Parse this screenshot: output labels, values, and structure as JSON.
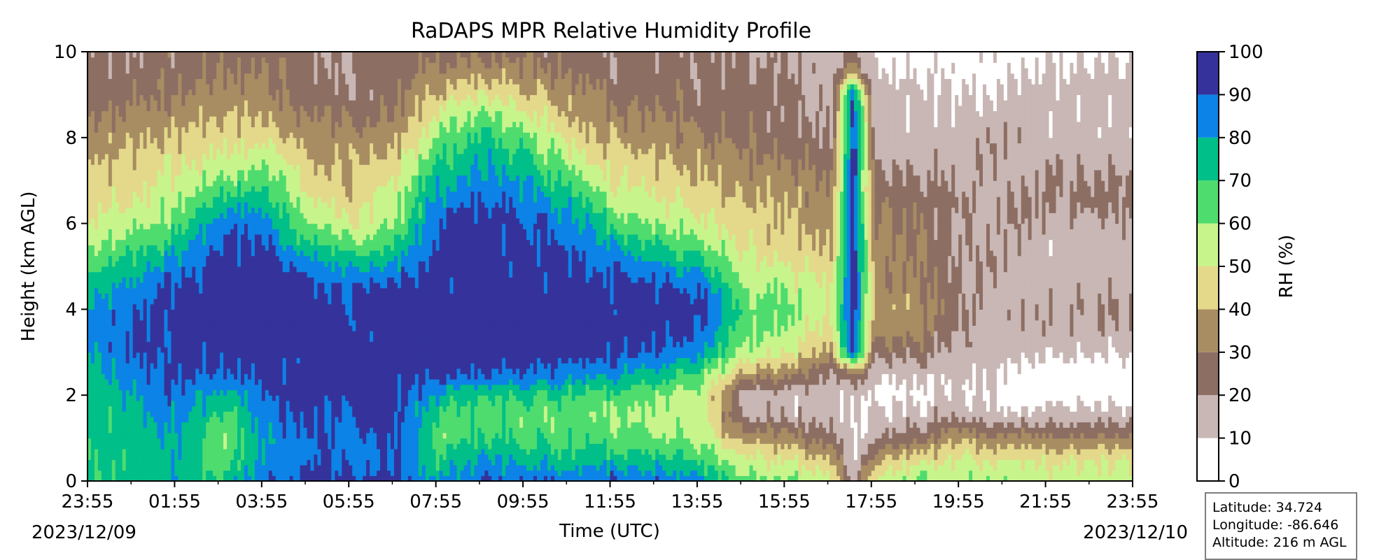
{
  "chart_data": {
    "type": "heatmap",
    "title": "RaDAPS MPR Relative Humidity Profile",
    "xlabel": "Time (UTC)",
    "ylabel": "Height (km AGL)",
    "x_tick_labels": [
      "23:55",
      "01:55",
      "03:55",
      "05:55",
      "07:55",
      "09:55",
      "11:55",
      "13:55",
      "15:55",
      "17:55",
      "19:55",
      "21:55",
      "23:55"
    ],
    "x_range_hours_utc": [
      -0.0833,
      23.9167
    ],
    "start_date": "2023/12/09",
    "end_date": "2023/12/10",
    "ylim": [
      0,
      10
    ],
    "y_ticks": [
      0,
      2,
      4,
      6,
      8,
      10
    ],
    "colorbar": {
      "label": "RH (%)",
      "ticks": [
        0,
        10,
        20,
        30,
        40,
        50,
        60,
        70,
        80,
        90,
        100
      ],
      "bins": [
        {
          "lo": 0,
          "hi": 10,
          "color": "#ffffff"
        },
        {
          "lo": 10,
          "hi": 20,
          "color": "#c8b7b4"
        },
        {
          "lo": 20,
          "hi": 30,
          "color": "#8d6e63"
        },
        {
          "lo": 30,
          "hi": 40,
          "color": "#a88c62"
        },
        {
          "lo": 40,
          "hi": 50,
          "color": "#e4d98a"
        },
        {
          "lo": 50,
          "hi": 60,
          "color": "#c8f48c"
        },
        {
          "lo": 60,
          "hi": 70,
          "color": "#4fdc6e"
        },
        {
          "lo": 70,
          "hi": 80,
          "color": "#00bf88"
        },
        {
          "lo": 80,
          "hi": 90,
          "color": "#0c83e6"
        },
        {
          "lo": 90,
          "hi": 100,
          "color": "#35339b"
        }
      ]
    },
    "field_description": {
      "heights_km": [
        0,
        0.5,
        1,
        1.5,
        2,
        2.5,
        3,
        3.5,
        4,
        4.5,
        5,
        5.5,
        6,
        6.5,
        7,
        7.5,
        8,
        8.5,
        9,
        9.5,
        10
      ],
      "columns": [
        {
          "t": 0.0,
          "rh": [
            72,
            70,
            70,
            72,
            74,
            78,
            80,
            82,
            80,
            76,
            68,
            60,
            50,
            46,
            42,
            40,
            36,
            30,
            25,
            22,
            20
          ]
        },
        {
          "t": 1.0,
          "rh": [
            74,
            72,
            74,
            78,
            80,
            86,
            90,
            92,
            90,
            84,
            76,
            66,
            56,
            50,
            46,
            42,
            38,
            32,
            28,
            24,
            22
          ]
        },
        {
          "t": 2.0,
          "rh": [
            80,
            78,
            80,
            84,
            86,
            92,
            95,
            96,
            95,
            92,
            85,
            76,
            66,
            58,
            52,
            46,
            42,
            36,
            30,
            26,
            24
          ]
        },
        {
          "t": 3.0,
          "rh": [
            70,
            62,
            60,
            66,
            76,
            90,
            95,
            97,
            96,
            96,
            95,
            92,
            86,
            74,
            62,
            52,
            46,
            40,
            34,
            30,
            26
          ]
        },
        {
          "t": 4.0,
          "rh": [
            88,
            84,
            82,
            84,
            88,
            93,
            96,
            97,
            97,
            96,
            95,
            92,
            86,
            76,
            66,
            56,
            46,
            40,
            34,
            30,
            26
          ]
        },
        {
          "t": 5.0,
          "rh": [
            92,
            90,
            90,
            92,
            94,
            96,
            97,
            97,
            96,
            94,
            86,
            72,
            60,
            52,
            46,
            40,
            36,
            30,
            26,
            22,
            20
          ]
        },
        {
          "t": 6.0,
          "rh": [
            92,
            88,
            88,
            90,
            92,
            95,
            96,
            96,
            94,
            88,
            76,
            62,
            52,
            46,
            40,
            36,
            32,
            28,
            24,
            22,
            20
          ]
        },
        {
          "t": 7.0,
          "rh": [
            94,
            92,
            90,
            92,
            94,
            96,
            97,
            97,
            96,
            92,
            84,
            72,
            62,
            56,
            50,
            44,
            38,
            32,
            28,
            24,
            22
          ]
        },
        {
          "t": 8.0,
          "rh": [
            80,
            70,
            64,
            68,
            78,
            94,
            97,
            97,
            97,
            96,
            95,
            94,
            90,
            84,
            78,
            70,
            62,
            52,
            42,
            34,
            28
          ]
        },
        {
          "t": 9.0,
          "rh": [
            88,
            78,
            70,
            66,
            74,
            90,
            96,
            97,
            97,
            97,
            96,
            95,
            93,
            90,
            86,
            80,
            72,
            60,
            48,
            38,
            30
          ]
        },
        {
          "t": 10.0,
          "rh": [
            88,
            76,
            68,
            64,
            72,
            88,
            96,
            97,
            97,
            96,
            95,
            93,
            90,
            86,
            80,
            72,
            62,
            52,
            42,
            34,
            28
          ]
        },
        {
          "t": 11.0,
          "rh": [
            88,
            74,
            66,
            62,
            70,
            86,
            95,
            97,
            97,
            96,
            94,
            90,
            84,
            76,
            66,
            56,
            48,
            40,
            34,
            28,
            24
          ]
        },
        {
          "t": 12.0,
          "rh": [
            90,
            76,
            66,
            60,
            66,
            82,
            94,
            96,
            96,
            94,
            88,
            78,
            68,
            58,
            50,
            44,
            38,
            32,
            28,
            24,
            22
          ]
        },
        {
          "t": 13.0,
          "rh": [
            88,
            74,
            62,
            56,
            60,
            76,
            90,
            95,
            95,
            92,
            82,
            70,
            60,
            52,
            46,
            40,
            36,
            32,
            28,
            24,
            22
          ]
        },
        {
          "t": 14.0,
          "rh": [
            84,
            70,
            58,
            52,
            54,
            66,
            84,
            92,
            94,
            88,
            76,
            64,
            54,
            46,
            40,
            36,
            32,
            28,
            24,
            22,
            20
          ]
        },
        {
          "t": 15.0,
          "rh": [
            64,
            52,
            36,
            18,
            16,
            38,
            58,
            62,
            64,
            60,
            54,
            48,
            44,
            40,
            36,
            32,
            28,
            26,
            24,
            22,
            20
          ]
        },
        {
          "t": 16.0,
          "rh": [
            62,
            50,
            34,
            16,
            14,
            34,
            52,
            58,
            62,
            58,
            52,
            46,
            42,
            38,
            34,
            30,
            26,
            24,
            22,
            20,
            18
          ]
        },
        {
          "t": 17.0,
          "rh": [
            56,
            40,
            24,
            14,
            12,
            20,
            36,
            46,
            50,
            48,
            44,
            40,
            36,
            32,
            28,
            24,
            20,
            18,
            16,
            14,
            12
          ]
        },
        {
          "t": 17.5,
          "rh": [
            14,
            12,
            10,
            8,
            10,
            30,
            94,
            97,
            97,
            97,
            96,
            96,
            96,
            96,
            95,
            95,
            94,
            94,
            92,
            40,
            20
          ]
        },
        {
          "t": 18.0,
          "rh": [
            52,
            36,
            20,
            12,
            8,
            12,
            22,
            32,
            38,
            36,
            34,
            32,
            30,
            28,
            24,
            20,
            16,
            14,
            12,
            10,
            8
          ]
        },
        {
          "t": 19.0,
          "rh": [
            64,
            46,
            24,
            14,
            10,
            14,
            24,
            32,
            36,
            34,
            32,
            30,
            28,
            26,
            22,
            18,
            14,
            12,
            10,
            8,
            6
          ]
        },
        {
          "t": 20.0,
          "rh": [
            58,
            50,
            40,
            20,
            12,
            12,
            14,
            18,
            22,
            20,
            18,
            18,
            18,
            20,
            18,
            16,
            14,
            12,
            10,
            8,
            6
          ]
        },
        {
          "t": 21.0,
          "rh": [
            56,
            48,
            34,
            14,
            6,
            6,
            12,
            16,
            18,
            16,
            16,
            16,
            18,
            20,
            20,
            18,
            16,
            14,
            12,
            10,
            8
          ]
        },
        {
          "t": 22.0,
          "rh": [
            56,
            48,
            30,
            14,
            6,
            6,
            12,
            16,
            18,
            16,
            16,
            16,
            18,
            20,
            20,
            18,
            16,
            14,
            12,
            10,
            8
          ]
        },
        {
          "t": 23.0,
          "rh": [
            56,
            50,
            30,
            14,
            6,
            6,
            12,
            16,
            18,
            16,
            16,
            16,
            18,
            20,
            20,
            18,
            16,
            14,
            12,
            10,
            8
          ]
        },
        {
          "t": 23.9,
          "rh": [
            56,
            50,
            28,
            14,
            6,
            6,
            12,
            16,
            18,
            16,
            16,
            16,
            18,
            20,
            20,
            18,
            16,
            14,
            12,
            10,
            8
          ]
        }
      ]
    }
  },
  "info": {
    "latitude": "Latitude: 34.724",
    "longitude": "Longitude: -86.646",
    "altitude": "Altitude: 216 m AGL"
  }
}
